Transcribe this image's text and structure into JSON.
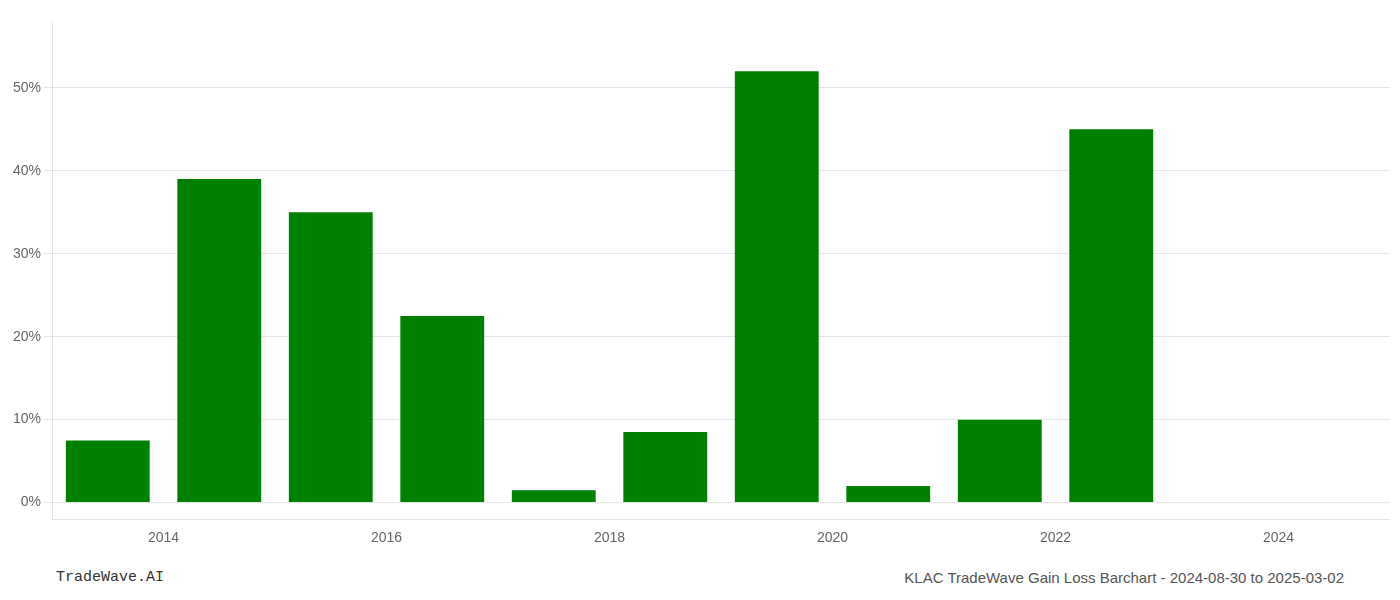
{
  "chart_data": {
    "type": "bar",
    "x": [
      2013.5,
      2014.5,
      2015.5,
      2016.5,
      2017.5,
      2018.5,
      2019.5,
      2020.5,
      2021.5,
      2022.5,
      2023.5
    ],
    "values": [
      7.5,
      39.0,
      35.0,
      22.5,
      1.5,
      8.5,
      52.0,
      2.0,
      10.0,
      45.0,
      0.0
    ],
    "color": "#008000",
    "xlim": [
      2013,
      2025
    ],
    "xticks": [
      2014,
      2016,
      2018,
      2020,
      2022,
      2024
    ],
    "ylim": [
      -2,
      58
    ],
    "yticks": [
      {
        "value": 0,
        "label": "0%"
      },
      {
        "value": 10,
        "label": "10%"
      },
      {
        "value": 20,
        "label": "20%"
      },
      {
        "value": 30,
        "label": "30%"
      },
      {
        "value": 40,
        "label": "40%"
      },
      {
        "value": 50,
        "label": "50%"
      }
    ],
    "grid": "y",
    "annotations": [
      "TradeWave.AI",
      "KLAC TradeWave Gain Loss Barchart - 2024-08-30 to 2025-03-02"
    ]
  }
}
